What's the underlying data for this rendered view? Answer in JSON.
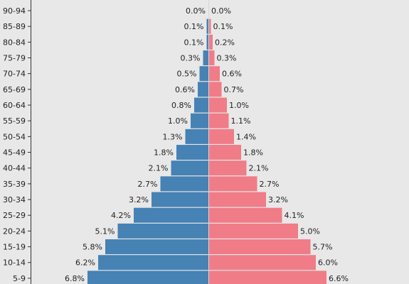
{
  "chart_data": {
    "type": "bar",
    "orientation": "horizontal",
    "layout": "population-pyramid",
    "categories": [
      "90-94",
      "85-89",
      "80-84",
      "75-79",
      "70-74",
      "65-69",
      "60-64",
      "55-59",
      "50-54",
      "45-49",
      "40-44",
      "35-39",
      "30-34",
      "25-29",
      "20-24",
      "15-19",
      "10-14",
      "5-9"
    ],
    "series": [
      {
        "side": "left",
        "color": "#4682b4",
        "values": [
          0.0,
          0.1,
          0.1,
          0.3,
          0.5,
          0.6,
          0.8,
          1.0,
          1.3,
          1.8,
          2.1,
          2.7,
          3.2,
          4.2,
          5.1,
          5.8,
          6.2,
          6.8
        ],
        "labels": [
          "0.0%",
          "0.1%",
          "0.1%",
          "0.3%",
          "0.5%",
          "0.6%",
          "0.8%",
          "1.0%",
          "1.3%",
          "1.8%",
          "2.1%",
          "2.7%",
          "3.2%",
          "4.2%",
          "5.1%",
          "5.8%",
          "6.2%",
          "6.8%"
        ]
      },
      {
        "side": "right",
        "color": "#f07c88",
        "values": [
          0.0,
          0.1,
          0.2,
          0.3,
          0.6,
          0.7,
          1.0,
          1.1,
          1.4,
          1.8,
          2.1,
          2.7,
          3.2,
          4.1,
          5.0,
          5.7,
          6.0,
          6.6
        ],
        "labels": [
          "0.0%",
          "0.1%",
          "0.2%",
          "0.3%",
          "0.6%",
          "0.7%",
          "1.0%",
          "1.1%",
          "1.4%",
          "1.8%",
          "2.1%",
          "2.7%",
          "3.2%",
          "4.1%",
          "5.0%",
          "5.7%",
          "6.0%",
          "6.6%"
        ]
      }
    ],
    "grid": false,
    "background": "#e8e8e8"
  }
}
